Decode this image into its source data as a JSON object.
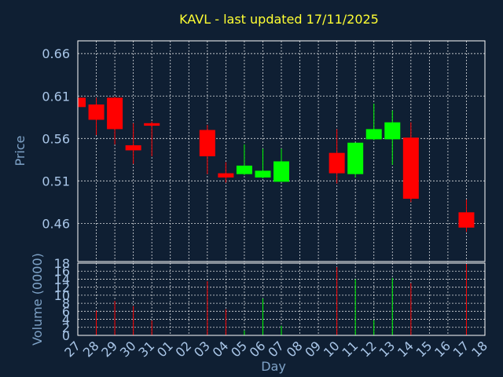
{
  "chart_data": {
    "type": "candlestick",
    "title": "KAVL - last updated 17/11/2025",
    "price_panel": {
      "ylabel": "Price",
      "yticks": [
        "0.66",
        "0.61",
        "0.56",
        "0.51",
        "0.46"
      ],
      "ylim": [
        0.415,
        0.675
      ],
      "grid": true
    },
    "volume_panel": {
      "ylabel": "Volume (0000)",
      "yticks": [
        "18",
        "16",
        "14",
        "12",
        "10",
        "8",
        "6",
        "4",
        "2",
        "0"
      ],
      "ylim": [
        0,
        18
      ],
      "grid": true
    },
    "xlabel": "Day",
    "days": [
      "27",
      "28",
      "29",
      "30",
      "31",
      "01",
      "02",
      "03",
      "04",
      "05",
      "06",
      "07",
      "08",
      "09",
      "10",
      "11",
      "12",
      "13",
      "14",
      "15",
      "16",
      "17",
      "18"
    ],
    "candles": [
      {
        "day": "27",
        "open": 0.608,
        "high": 0.609,
        "low": 0.596,
        "close": 0.597
      },
      {
        "day": "28",
        "open": 0.6,
        "high": 0.608,
        "low": 0.564,
        "close": 0.582
      },
      {
        "day": "29",
        "open": 0.608,
        "high": 0.609,
        "low": 0.553,
        "close": 0.571
      },
      {
        "day": "30",
        "open": 0.552,
        "high": 0.578,
        "low": 0.53,
        "close": 0.546
      },
      {
        "day": "31",
        "open": 0.578,
        "high": 0.58,
        "low": 0.539,
        "close": 0.575
      },
      {
        "day": "03",
        "open": 0.57,
        "high": 0.576,
        "low": 0.518,
        "close": 0.539
      },
      {
        "day": "04",
        "open": 0.519,
        "high": 0.532,
        "low": 0.508,
        "close": 0.514
      },
      {
        "day": "05",
        "open": 0.518,
        "high": 0.553,
        "low": 0.517,
        "close": 0.528
      },
      {
        "day": "06",
        "open": 0.514,
        "high": 0.548,
        "low": 0.513,
        "close": 0.522
      },
      {
        "day": "07",
        "open": 0.509,
        "high": 0.548,
        "low": 0.509,
        "close": 0.533
      },
      {
        "day": "10",
        "open": 0.543,
        "high": 0.571,
        "low": 0.507,
        "close": 0.519
      },
      {
        "day": "11",
        "open": 0.518,
        "high": 0.555,
        "low": 0.514,
        "close": 0.555
      },
      {
        "day": "12",
        "open": 0.559,
        "high": 0.601,
        "low": 0.558,
        "close": 0.571
      },
      {
        "day": "13",
        "open": 0.559,
        "high": 0.593,
        "low": 0.529,
        "close": 0.579
      },
      {
        "day": "14",
        "open": 0.561,
        "high": 0.579,
        "low": 0.485,
        "close": 0.489
      },
      {
        "day": "17",
        "open": 0.473,
        "high": 0.488,
        "low": 0.45,
        "close": 0.455
      }
    ],
    "volume": [
      {
        "day": "28",
        "value": 6.2,
        "direction": "down"
      },
      {
        "day": "29",
        "value": 8.6,
        "direction": "down"
      },
      {
        "day": "30",
        "value": 7.3,
        "direction": "down"
      },
      {
        "day": "31",
        "value": 3.7,
        "direction": "down"
      },
      {
        "day": "03",
        "value": 13.5,
        "direction": "down"
      },
      {
        "day": "04",
        "value": 6.5,
        "direction": "down"
      },
      {
        "day": "05",
        "value": 1.2,
        "direction": "up"
      },
      {
        "day": "06",
        "value": 9.2,
        "direction": "up"
      },
      {
        "day": "07",
        "value": 2.4,
        "direction": "up"
      },
      {
        "day": "10",
        "value": 17.0,
        "direction": "down"
      },
      {
        "day": "11",
        "value": 14.0,
        "direction": "up"
      },
      {
        "day": "12",
        "value": 3.8,
        "direction": "up"
      },
      {
        "day": "13",
        "value": 14.3,
        "direction": "up"
      },
      {
        "day": "14",
        "value": 13.0,
        "direction": "down"
      },
      {
        "day": "17",
        "value": 17.8,
        "direction": "down"
      }
    ],
    "colors": {
      "background": "#0f1f33",
      "up": "#00ff00",
      "down": "#ff0000",
      "grid": "#ffffff",
      "tick_text": "#a9c6e8",
      "title": "#ffff33"
    }
  }
}
